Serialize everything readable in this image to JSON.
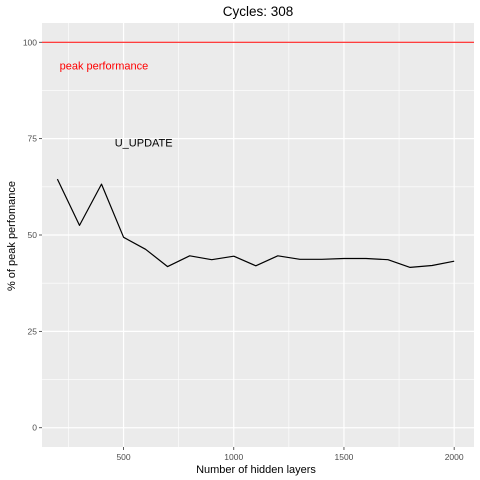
{
  "chart_data": {
    "type": "line",
    "title": "Cycles:  308",
    "xlabel": "Number of hidden layers",
    "ylabel": "% of peak perfomance",
    "xlim": [
      130,
      2090
    ],
    "ylim": [
      -5,
      105
    ],
    "xticks": [
      500,
      1000,
      1500,
      2000
    ],
    "yticks": [
      0,
      25,
      50,
      75,
      100
    ],
    "grid": true,
    "series": [
      {
        "x": [
          200,
          300,
          400,
          500,
          600,
          700,
          800,
          900,
          1000,
          1100,
          1200,
          1300,
          1400,
          1500,
          1600,
          1700,
          1800,
          1900,
          2000
        ],
        "values": [
          64.5,
          52.5,
          63.2,
          49.4,
          46.3,
          41.8,
          44.6,
          43.6,
          44.5,
          42.0,
          44.6,
          43.7,
          43.7,
          43.9,
          43.9,
          43.6,
          41.6,
          42.1,
          43.2
        ],
        "color": "#000000"
      }
    ],
    "reference_line": {
      "y": 100,
      "color": "#ff0000"
    },
    "annotations": [
      {
        "text": "peak performance",
        "x": 210,
        "y": 94,
        "color": "#ff0000"
      },
      {
        "text": "U_UPDATE",
        "x": 460,
        "y": 74,
        "color": "#000000"
      }
    ],
    "colors": {
      "panel": "#ebebeb",
      "grid": "#ffffff"
    }
  }
}
